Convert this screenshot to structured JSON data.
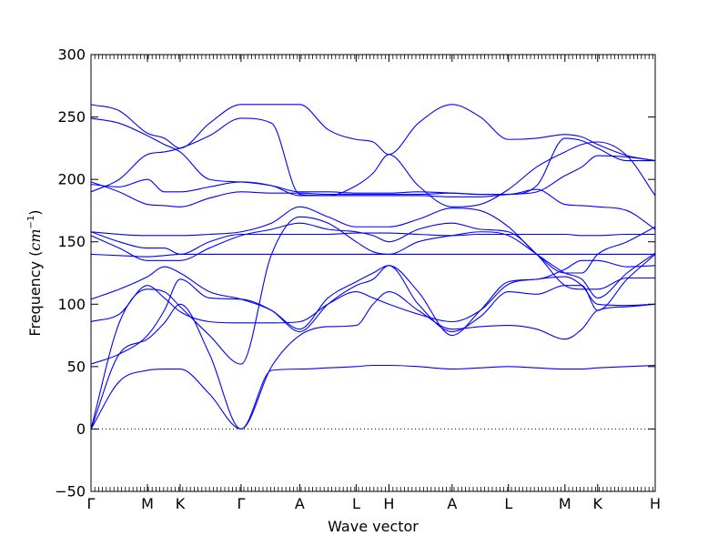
{
  "chart_data": {
    "type": "line",
    "title": "",
    "xlabel": "Wave vector",
    "ylabel": "Frequency (cm⁻¹)",
    "ylabel_main": "Frequency (",
    "ylabel_unit": "cm",
    "ylabel_exp": "−1",
    "ylabel_close": ")",
    "ylim": [
      -50,
      300
    ],
    "yticks": [
      -50,
      0,
      50,
      100,
      150,
      200,
      250,
      300
    ],
    "xlim": [
      0,
      10
    ],
    "grid": false,
    "high_symmetry_points": [
      {
        "label": "Γ",
        "x": 0
      },
      {
        "label": "M",
        "x": 1
      },
      {
        "label": "K",
        "x": 1.58
      },
      {
        "label": "Γ",
        "x": 2.66
      },
      {
        "label": "A",
        "x": 3.7
      },
      {
        "label": "L",
        "x": 4.7
      },
      {
        "label": "H",
        "x": 5.28
      },
      {
        "label": "A",
        "x": 6.4
      },
      {
        "label": "L",
        "x": 7.4
      },
      {
        "label": "M",
        "x": 8.4
      },
      {
        "label": "K",
        "x": 8.98
      },
      {
        "label": "H",
        "x": 10
      }
    ],
    "series_color": "#0000ff",
    "zero_line_color": "#000000",
    "series": [
      {
        "x": [
          0,
          0.5,
          1,
          1.3,
          1.58,
          2.1,
          2.66,
          3.2,
          3.7,
          4.2,
          4.7,
          5.0,
          5.28,
          5.8,
          6.4,
          6.9,
          7.4,
          7.9,
          8.4,
          8.7,
          8.98,
          9.5,
          10
        ],
        "values": [
          0,
          38,
          47,
          48,
          48,
          28,
          0,
          47,
          48,
          49,
          50,
          51,
          51,
          50,
          48,
          49,
          50,
          49,
          48,
          48,
          49,
          50,
          51
        ]
      },
      {
        "x": [
          0,
          0.5,
          1,
          1.3,
          1.58,
          2.1,
          2.66,
          3.2,
          3.7,
          4.2,
          4.7,
          5.0,
          5.28,
          5.8,
          6.4,
          6.9,
          7.4,
          7.9,
          8.4,
          8.7,
          8.98,
          9.5,
          10
        ],
        "values": [
          0,
          60,
          72,
          85,
          100,
          60,
          0,
          50,
          75,
          82,
          83,
          100,
          110,
          95,
          80,
          82,
          83,
          80,
          72,
          80,
          95,
          98,
          100
        ]
      },
      {
        "x": [
          0,
          0.5,
          1,
          1.3,
          1.58,
          2.1,
          2.66,
          3.2,
          3.7,
          4.2,
          4.7,
          5.0,
          5.28,
          5.8,
          6.4,
          6.9,
          7.4,
          7.9,
          8.4,
          8.7,
          8.98,
          9.5,
          10
        ],
        "values": [
          0,
          85,
          112,
          110,
          98,
          75,
          52,
          140,
          170,
          165,
          150,
          142,
          140,
          150,
          155,
          158,
          155,
          140,
          125,
          120,
          105,
          125,
          141
        ]
      },
      {
        "x": [
          0,
          0.5,
          1,
          1.3,
          1.58,
          2.1,
          2.66,
          3.2,
          3.7,
          4.2,
          4.7,
          5.0,
          5.28,
          5.8,
          6.4,
          6.9,
          7.4,
          7.9,
          8.4,
          8.7,
          8.98,
          9.5,
          10
        ],
        "values": [
          52,
          60,
          75,
          95,
          120,
          105,
          104,
          95,
          78,
          100,
          115,
          120,
          131,
          100,
          78,
          90,
          110,
          108,
          115,
          115,
          95,
          120,
          140
        ]
      },
      {
        "x": [
          0,
          0.5,
          1,
          1.3,
          1.58,
          2.1,
          2.66,
          3.2,
          3.7,
          4.2,
          4.7,
          5.0,
          5.28,
          5.8,
          6.4,
          6.9,
          7.4,
          7.9,
          8.4,
          8.7,
          8.98,
          9.5,
          10
        ],
        "values": [
          86,
          92,
          115,
          105,
          94,
          86,
          85,
          85,
          86,
          100,
          110,
          105,
          100,
          92,
          86,
          95,
          116,
          120,
          122,
          115,
          100,
          99,
          100
        ]
      },
      {
        "x": [
          0,
          0.5,
          1,
          1.3,
          1.58,
          2.1,
          2.66,
          3.2,
          3.7,
          4.2,
          4.7,
          5.0,
          5.28,
          5.8,
          6.4,
          6.9,
          7.4,
          7.9,
          8.4,
          8.7,
          8.98,
          9.5,
          10
        ],
        "values": [
          104,
          112,
          122,
          130,
          125,
          110,
          104,
          95,
          80,
          105,
          118,
          125,
          131,
          110,
          75,
          95,
          118,
          120,
          128,
          135,
          135,
          130,
          131
        ]
      },
      {
        "x": [
          0,
          0.5,
          1,
          1.3,
          1.58,
          2.1,
          2.66,
          3.2,
          3.7,
          4.2,
          4.7,
          5.0,
          5.28,
          5.8,
          6.4,
          6.9,
          7.4,
          7.9,
          8.4,
          8.7,
          8.98,
          9.5,
          10
        ],
        "values": [
          140,
          139,
          138,
          139,
          140,
          140,
          140,
          140,
          140,
          140,
          140,
          140,
          140,
          140,
          140,
          140,
          140,
          140,
          140,
          140,
          140,
          140,
          140
        ]
      },
      {
        "x": [
          0,
          0.5,
          1,
          1.3,
          1.58,
          2.1,
          2.66,
          3.2,
          3.7,
          4.2,
          4.7,
          5.0,
          5.28,
          5.8,
          6.4,
          6.9,
          7.4,
          7.9,
          8.4,
          8.7,
          8.98,
          9.5,
          10
        ],
        "values": [
          155,
          145,
          135,
          135,
          135,
          145,
          155,
          160,
          165,
          160,
          158,
          155,
          150,
          160,
          165,
          160,
          158,
          140,
          115,
          112,
          112,
          121,
          121
        ]
      },
      {
        "x": [
          0,
          0.5,
          1,
          1.3,
          1.58,
          2.1,
          2.66,
          3.2,
          3.7,
          4.2,
          4.7,
          5.0,
          5.28,
          5.8,
          6.4,
          6.9,
          7.4,
          7.9,
          8.4,
          8.7,
          8.98,
          9.5,
          10
        ],
        "values": [
          158,
          150,
          145,
          145,
          140,
          150,
          156,
          156,
          156,
          156,
          157,
          157,
          157,
          156,
          155,
          156,
          156,
          156,
          156,
          155,
          155,
          156,
          156
        ]
      },
      {
        "x": [
          0,
          0.5,
          1,
          1.3,
          1.58,
          2.1,
          2.66,
          3.2,
          3.7,
          4.2,
          4.7,
          5.0,
          5.28,
          5.8,
          6.4,
          6.9,
          7.4,
          7.9,
          8.4,
          8.7,
          8.98,
          9.5,
          10
        ],
        "values": [
          158,
          156,
          155,
          155,
          155,
          156,
          158,
          165,
          178,
          170,
          162,
          162,
          162,
          168,
          177,
          175,
          162,
          140,
          125,
          125,
          140,
          150,
          162
        ]
      },
      {
        "x": [
          0,
          0.5,
          1,
          1.3,
          1.58,
          2.1,
          2.66,
          3.2,
          3.7,
          4.2,
          4.7,
          5.0,
          5.28,
          5.8,
          6.4,
          6.9,
          7.4,
          7.9,
          8.4,
          8.7,
          8.98,
          9.5,
          10
        ],
        "values": [
          198,
          190,
          180,
          179,
          178,
          185,
          190,
          189,
          189,
          188,
          188,
          188,
          188,
          188,
          189,
          188,
          188,
          192,
          180,
          179,
          178,
          175,
          160
        ]
      },
      {
        "x": [
          0,
          0.5,
          1,
          1.3,
          1.58,
          2.1,
          2.66,
          3.2,
          3.7,
          4.2,
          4.7,
          5.0,
          5.28,
          5.8,
          6.4,
          6.9,
          7.4,
          7.9,
          8.4,
          8.7,
          8.98,
          9.5,
          10
        ],
        "values": [
          196,
          194,
          200,
          190,
          190,
          194,
          198,
          195,
          187,
          187,
          187,
          187,
          187,
          187,
          186,
          186,
          188,
          190,
          203,
          210,
          219,
          218,
          215
        ]
      },
      {
        "x": [
          0,
          0.5,
          1,
          1.3,
          1.58,
          2.1,
          2.66,
          3.2,
          3.7,
          4.2,
          4.7,
          5.0,
          5.28,
          5.8,
          6.4,
          6.9,
          7.4,
          7.9,
          8.4,
          8.7,
          8.98,
          9.5,
          10
        ],
        "values": [
          190,
          200,
          220,
          222,
          225,
          235,
          249,
          245,
          188,
          187,
          195,
          205,
          220,
          195,
          178,
          180,
          192,
          210,
          222,
          228,
          230,
          219,
          187
        ]
      },
      {
        "x": [
          0,
          0.5,
          1,
          1.3,
          1.58,
          2.1,
          2.66,
          3.2,
          3.7,
          4.2,
          4.7,
          5.0,
          5.28,
          5.8,
          6.4,
          6.9,
          7.4,
          7.9,
          8.4,
          8.7,
          8.98,
          9.5,
          10
        ],
        "values": [
          249,
          245,
          235,
          228,
          222,
          200,
          198,
          195,
          190,
          190,
          189,
          189,
          189,
          190,
          189,
          188,
          188,
          195,
          233,
          231,
          225,
          215,
          215
        ]
      },
      {
        "x": [
          0,
          0.5,
          1,
          1.3,
          1.58,
          2.1,
          2.66,
          3.2,
          3.7,
          4.2,
          4.7,
          5.0,
          5.28,
          5.8,
          6.4,
          6.9,
          7.4,
          7.9,
          8.4,
          8.7,
          8.98,
          9.5,
          10
        ],
        "values": [
          260,
          255,
          237,
          233,
          225,
          245,
          260,
          260,
          260,
          240,
          232,
          230,
          220,
          245,
          260,
          250,
          232,
          233,
          236,
          234,
          228,
          219,
          215
        ]
      }
    ]
  }
}
